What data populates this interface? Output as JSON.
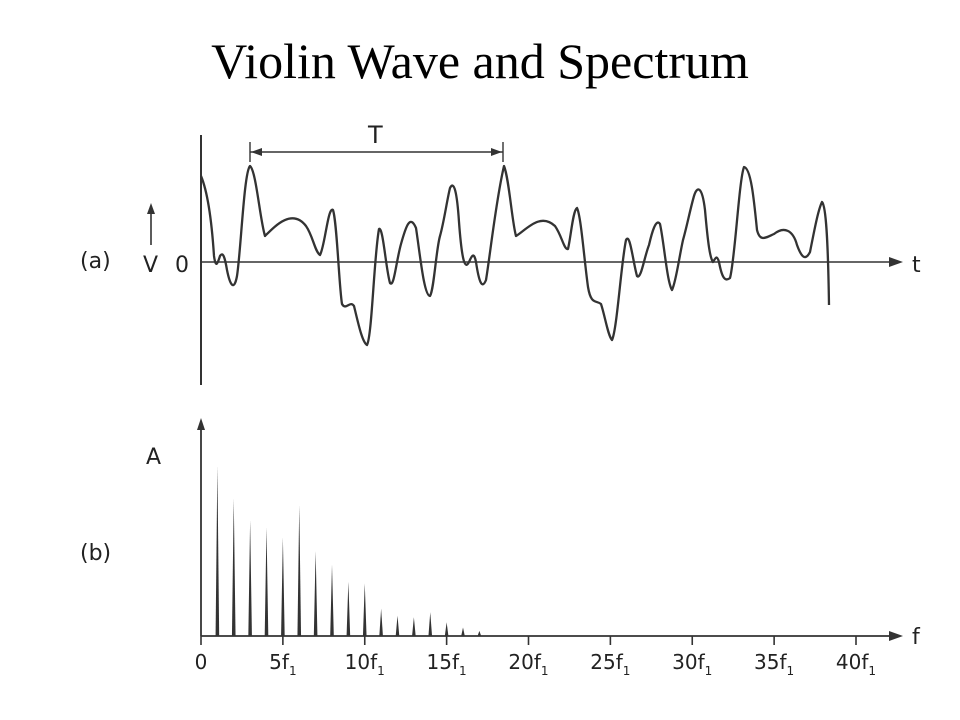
{
  "title": "Violin Wave and Spectrum",
  "waveform": {
    "panel_label": "(a)",
    "y_label": "V",
    "zero_label": "0",
    "x_label": "t",
    "period_label": "T"
  },
  "spectrum": {
    "panel_label": "(b)",
    "y_label": "A",
    "x_label": "f"
  },
  "chart_data": {
    "type": "bar",
    "harmonics": [
      1,
      2,
      3,
      4,
      5,
      6,
      7,
      8,
      9,
      10,
      11,
      12,
      13,
      14,
      15,
      16,
      17
    ],
    "amplitudes": [
      1.0,
      0.81,
      0.68,
      0.64,
      0.58,
      0.77,
      0.5,
      0.42,
      0.32,
      0.31,
      0.16,
      0.12,
      0.11,
      0.14,
      0.08,
      0.05,
      0.03
    ],
    "tick_labels": [
      {
        "main": "0",
        "sub": ""
      },
      {
        "main": "5f",
        "sub": "1"
      },
      {
        "main": "10f",
        "sub": "1"
      },
      {
        "main": "15f",
        "sub": "1"
      },
      {
        "main": "20f",
        "sub": "1"
      },
      {
        "main": "25f",
        "sub": "1"
      },
      {
        "main": "30f",
        "sub": "1"
      },
      {
        "main": "35f",
        "sub": "1"
      },
      {
        "main": "40f",
        "sub": "1"
      }
    ],
    "tick_values": [
      0,
      5,
      10,
      15,
      20,
      25,
      30,
      35,
      40
    ],
    "xlim": [
      0,
      42
    ],
    "ylim": [
      0,
      1
    ]
  }
}
